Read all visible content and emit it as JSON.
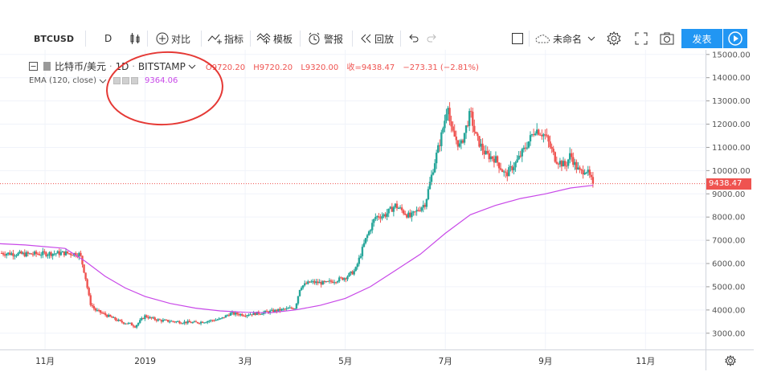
{
  "toolbar": {
    "symbol": "BTCUSD",
    "interval": "D",
    "compare_label": "对比",
    "indicators_label": "指标",
    "templates_label": "模板",
    "alerts_label": "警报",
    "replay_label": "回放",
    "layout_name": "未命名",
    "publish_label": "发表"
  },
  "legend": {
    "title": "比特币/美元",
    "sep": "·",
    "interval": "1D",
    "exchange": "BITSTAMP",
    "open": "O9720.20",
    "high": "H9720.20",
    "low": "L9320.00",
    "close": "收=9438.47",
    "change": "−273.31 (−2.81%)",
    "ema_label": "EMA (120, close)",
    "ema_value": "9364.06"
  },
  "price_tag": "9438.47",
  "colors": {
    "up": "#26a69a",
    "down": "#ef5350",
    "ema": "#c848e8",
    "accent": "#2196f3",
    "annotation": "#e53935"
  },
  "icons": {
    "candle": "candlestick-icon",
    "compare": "plus-circle-icon",
    "indicators": "indicator-icon",
    "templates": "template-icon",
    "alerts": "alarm-clock-icon",
    "replay": "rewind-icon",
    "undo": "undo-icon",
    "redo": "redo-icon",
    "cloud": "cloud-icon",
    "settings": "gear-icon",
    "fullscreen": "fullscreen-icon",
    "snapshot": "camera-icon",
    "play": "play-icon"
  },
  "chart_data": {
    "type": "candlestick",
    "y_ticks": [
      "15000.00",
      "14000.00",
      "13000.00",
      "12000.00",
      "11000.00",
      "10000.00",
      "9000.00",
      "8000.00",
      "7000.00",
      "6000.00",
      "5000.00",
      "4000.00",
      "3000.00"
    ],
    "y_tick_values": [
      15000,
      14000,
      13000,
      12000,
      11000,
      10000,
      9000,
      8000,
      7000,
      6000,
      5000,
      4000,
      3000
    ],
    "x_ticks": [
      "11月",
      "2019",
      "3月",
      "5月",
      "7月",
      "9月",
      "11月"
    ],
    "x_tick_months": [
      0,
      2,
      4,
      6,
      8,
      10,
      12
    ],
    "ylim": [
      2300,
      15200
    ],
    "xlim_months": [
      -0.9,
      13.2
    ],
    "close_path": [
      [
        -0.9,
        6450
      ],
      [
        -0.4,
        6400
      ],
      [
        0.4,
        6450
      ],
      [
        0.7,
        6400
      ],
      [
        0.8,
        5500
      ],
      [
        0.9,
        4300
      ],
      [
        1.0,
        4000
      ],
      [
        1.2,
        3800
      ],
      [
        1.4,
        3600
      ],
      [
        1.5,
        3500
      ],
      [
        1.7,
        3400
      ],
      [
        1.8,
        3300
      ],
      [
        2.0,
        3750
      ],
      [
        2.1,
        3650
      ],
      [
        2.3,
        3550
      ],
      [
        2.6,
        3500
      ],
      [
        3.0,
        3450
      ],
      [
        3.5,
        3600
      ],
      [
        3.7,
        3850
      ],
      [
        4.0,
        3800
      ],
      [
        4.4,
        3900
      ],
      [
        4.7,
        4000
      ],
      [
        5.0,
        4100
      ],
      [
        5.1,
        5000
      ],
      [
        5.3,
        5200
      ],
      [
        5.6,
        5150
      ],
      [
        6.0,
        5400
      ],
      [
        6.2,
        5700
      ],
      [
        6.4,
        7000
      ],
      [
        6.6,
        8000
      ],
      [
        6.8,
        8100
      ],
      [
        7.0,
        8500
      ],
      [
        7.3,
        8000
      ],
      [
        7.6,
        8600
      ],
      [
        7.8,
        10500
      ],
      [
        7.9,
        11300
      ],
      [
        8.0,
        12300
      ],
      [
        8.05,
        13000
      ],
      [
        8.1,
        11800
      ],
      [
        8.3,
        11000
      ],
      [
        8.5,
        12500
      ],
      [
        8.6,
        11500
      ],
      [
        8.8,
        10700
      ],
      [
        9.0,
        10500
      ],
      [
        9.2,
        9800
      ],
      [
        9.4,
        10300
      ],
      [
        9.6,
        11000
      ],
      [
        9.8,
        11800
      ],
      [
        10.0,
        11500
      ],
      [
        10.2,
        10500
      ],
      [
        10.4,
        10200
      ],
      [
        10.5,
        10700
      ],
      [
        10.6,
        10200
      ],
      [
        10.7,
        9900
      ],
      [
        10.8,
        10100
      ],
      [
        10.95,
        9438
      ]
    ],
    "ema": [
      [
        -0.9,
        6850
      ],
      [
        -0.4,
        6800
      ],
      [
        0.4,
        6650
      ],
      [
        0.8,
        6100
      ],
      [
        1.2,
        5450
      ],
      [
        1.6,
        4950
      ],
      [
        2.0,
        4580
      ],
      [
        2.5,
        4280
      ],
      [
        3.0,
        4080
      ],
      [
        3.5,
        3960
      ],
      [
        4.0,
        3900
      ],
      [
        4.5,
        3880
      ],
      [
        5.0,
        4000
      ],
      [
        5.5,
        4200
      ],
      [
        6.0,
        4500
      ],
      [
        6.5,
        5000
      ],
      [
        7.0,
        5700
      ],
      [
        7.5,
        6400
      ],
      [
        8.0,
        7300
      ],
      [
        8.5,
        8100
      ],
      [
        9.0,
        8500
      ],
      [
        9.5,
        8800
      ],
      [
        10.0,
        9000
      ],
      [
        10.5,
        9250
      ],
      [
        10.95,
        9364
      ]
    ]
  }
}
